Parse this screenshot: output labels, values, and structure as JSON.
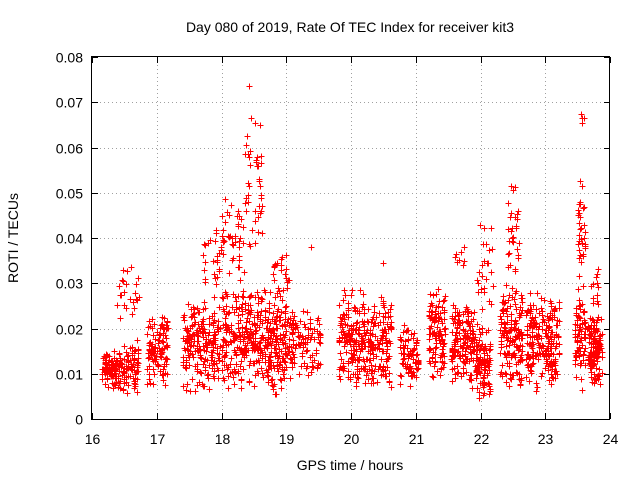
{
  "chart_data": {
    "type": "scatter",
    "title": "Day 080 of 2019, Rate Of TEC Index for receiver kit3",
    "xlabel": "GPS time / hours",
    "ylabel": "ROTI / TECUs",
    "xlim": [
      16,
      24
    ],
    "ylim": [
      0,
      0.08
    ],
    "grid": true,
    "x_ticks": [
      16,
      17,
      18,
      19,
      20,
      21,
      22,
      23,
      24
    ],
    "x_tick_labels": [
      "16",
      "17",
      "18",
      "19",
      "20",
      "21",
      "22",
      "23",
      "24"
    ],
    "y_ticks": [
      0,
      0.01,
      0.02,
      0.03,
      0.04,
      0.05,
      0.06,
      0.07,
      0.08
    ],
    "y_tick_labels": [
      "0",
      "0.01",
      "0.02",
      "0.03",
      "0.04",
      "0.05",
      "0.06",
      "0.07",
      "0.08"
    ],
    "marker": "plus",
    "color": "#ff0000",
    "clusters": [
      {
        "x": [
          16.15,
          16.38
        ],
        "y_base": [
          0.006,
          0.016
        ],
        "n": 85
      },
      {
        "x": [
          16.4,
          16.72
        ],
        "y_base": [
          0.005,
          0.018
        ],
        "n": 95
      },
      {
        "x": [
          16.38,
          16.72
        ],
        "y_base": [
          0.02,
          0.033
        ],
        "n": 22
      },
      {
        "x": [
          16.85,
          17.18
        ],
        "y_base": [
          0.007,
          0.024
        ],
        "n": 110
      },
      {
        "x": [
          17.4,
          17.98
        ],
        "y_base": [
          0.005,
          0.028
        ],
        "n": 200
      },
      {
        "x": [
          17.7,
          18.0
        ],
        "y_base": [
          0.028,
          0.045
        ],
        "n": 25
      },
      {
        "x": [
          18.0,
          18.58
        ],
        "y_base": [
          0.006,
          0.03
        ],
        "n": 210
      },
      {
        "x": [
          18.0,
          18.35
        ],
        "y_base": [
          0.03,
          0.049
        ],
        "n": 40
      },
      {
        "x": [
          18.35,
          18.62
        ],
        "y_base": [
          0.03,
          0.066
        ],
        "n": 32
      },
      {
        "x": [
          18.55,
          19.0
        ],
        "y_base": [
          0.004,
          0.03
        ],
        "n": 190
      },
      {
        "x": [
          18.8,
          19.05
        ],
        "y_base": [
          0.028,
          0.04
        ],
        "n": 20
      },
      {
        "x": [
          19.0,
          19.55
        ],
        "y_base": [
          0.008,
          0.025
        ],
        "n": 110
      },
      {
        "x": [
          19.8,
          20.2
        ],
        "y_base": [
          0.006,
          0.03
        ],
        "n": 150
      },
      {
        "x": [
          20.2,
          20.62
        ],
        "y_base": [
          0.006,
          0.028
        ],
        "n": 150
      },
      {
        "x": [
          20.75,
          21.05
        ],
        "y_base": [
          0.006,
          0.022
        ],
        "n": 80
      },
      {
        "x": [
          21.2,
          21.45
        ],
        "y_base": [
          0.007,
          0.03
        ],
        "n": 110
      },
      {
        "x": [
          21.55,
          21.9
        ],
        "y_base": [
          0.006,
          0.028
        ],
        "n": 150
      },
      {
        "x": [
          21.6,
          21.75
        ],
        "y_base": [
          0.033,
          0.039
        ],
        "n": 8
      },
      {
        "x": [
          21.92,
          22.15
        ],
        "y_base": [
          0.003,
          0.022
        ],
        "n": 100
      },
      {
        "x": [
          21.95,
          22.2
        ],
        "y_base": [
          0.022,
          0.044
        ],
        "n": 25
      },
      {
        "x": [
          22.3,
          22.65
        ],
        "y_base": [
          0.006,
          0.03
        ],
        "n": 150
      },
      {
        "x": [
          22.4,
          22.6
        ],
        "y_base": [
          0.03,
          0.052
        ],
        "n": 30
      },
      {
        "x": [
          22.7,
          22.98
        ],
        "y_base": [
          0.006,
          0.03
        ],
        "n": 110
      },
      {
        "x": [
          23.0,
          23.22
        ],
        "y_base": [
          0.006,
          0.028
        ],
        "n": 100
      },
      {
        "x": [
          23.45,
          23.62
        ],
        "y_base": [
          0.006,
          0.03
        ],
        "n": 80
      },
      {
        "x": [
          23.5,
          23.62
        ],
        "y_base": [
          0.03,
          0.052
        ],
        "n": 30
      },
      {
        "x": [
          23.65,
          23.88
        ],
        "y_base": [
          0.005,
          0.024
        ],
        "n": 130
      },
      {
        "x": [
          23.7,
          23.82
        ],
        "y_base": [
          0.024,
          0.034
        ],
        "n": 12
      }
    ],
    "outliers": [
      {
        "x": 18.42,
        "y": 0.0735
      },
      {
        "x": 18.46,
        "y": 0.0665
      },
      {
        "x": 18.52,
        "y": 0.0655
      },
      {
        "x": 18.6,
        "y": 0.065
      },
      {
        "x": 18.4,
        "y": 0.0625
      },
      {
        "x": 18.38,
        "y": 0.0605
      },
      {
        "x": 18.36,
        "y": 0.0585
      },
      {
        "x": 18.42,
        "y": 0.058
      },
      {
        "x": 18.58,
        "y": 0.053
      },
      {
        "x": 18.62,
        "y": 0.047
      },
      {
        "x": 18.6,
        "y": 0.0455
      },
      {
        "x": 19.38,
        "y": 0.038
      },
      {
        "x": 20.5,
        "y": 0.0345
      },
      {
        "x": 23.55,
        "y": 0.0675
      },
      {
        "x": 23.57,
        "y": 0.0665
      },
      {
        "x": 23.56,
        "y": 0.0655
      },
      {
        "x": 23.6,
        "y": 0.0665
      },
      {
        "x": 23.53,
        "y": 0.0525
      },
      {
        "x": 23.57,
        "y": 0.0515
      },
      {
        "x": 22.47,
        "y": 0.0515
      },
      {
        "x": 22.5,
        "y": 0.0505
      },
      {
        "x": 16.6,
        "y": 0.0335
      },
      {
        "x": 16.48,
        "y": 0.033
      }
    ]
  }
}
